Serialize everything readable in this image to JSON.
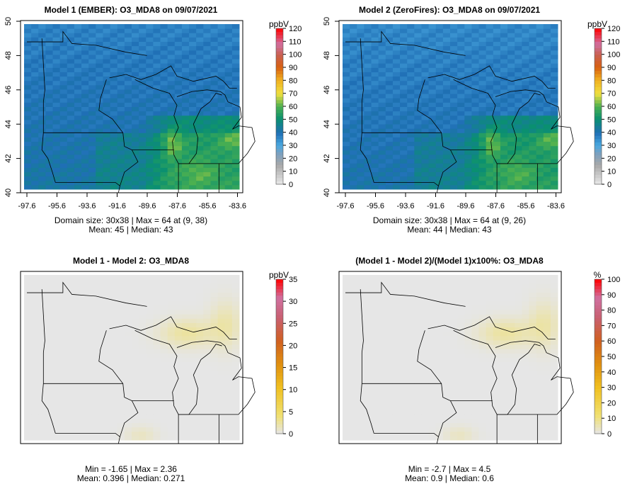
{
  "chart_data": [
    {
      "type": "heatmap",
      "title": "Model 1 (EMBER): O3_MDA8 on 09/07/2021",
      "x_ticks": [
        "-97.6",
        "-95.6",
        "-93.6",
        "-91.6",
        "-89.6",
        "-87.6",
        "-85.6",
        "-83.6"
      ],
      "y_ticks": [
        "40",
        "42",
        "44",
        "46",
        "48",
        "50"
      ],
      "xlim": [
        -97.6,
        -83.6
      ],
      "ylim": [
        40,
        50
      ],
      "colorbar": {
        "unit": "ppbV",
        "ticks": [
          "0",
          "10",
          "20",
          "30",
          "40",
          "50",
          "60",
          "70",
          "80",
          "90",
          "100",
          "110",
          "120"
        ],
        "range": [
          0,
          120
        ]
      },
      "stats": [
        "Domain size: 30x38 | Max = 64 at (9, 38)",
        "Mean: 45 |  Median: 43"
      ],
      "summary": {
        "domain": "30x38",
        "max": 64,
        "max_at": [
          9,
          38
        ],
        "mean": 45,
        "median": 43
      }
    },
    {
      "type": "heatmap",
      "title": "Model 2 (ZeroFires): O3_MDA8 on 09/07/2021",
      "x_ticks": [
        "-97.6",
        "-95.6",
        "-93.6",
        "-91.6",
        "-89.6",
        "-87.6",
        "-85.6",
        "-83.6"
      ],
      "y_ticks": [
        "40",
        "42",
        "44",
        "46",
        "48",
        "50"
      ],
      "xlim": [
        -97.6,
        -83.6
      ],
      "ylim": [
        40,
        50
      ],
      "colorbar": {
        "unit": "ppbV",
        "ticks": [
          "0",
          "10",
          "20",
          "30",
          "40",
          "50",
          "60",
          "70",
          "80",
          "90",
          "100",
          "110",
          "120"
        ],
        "range": [
          0,
          120
        ]
      },
      "stats": [
        "Domain size: 30x38 | Max = 64 at (9, 26)",
        "Mean: 44 |  Median: 43"
      ],
      "summary": {
        "domain": "30x38",
        "max": 64,
        "max_at": [
          9,
          26
        ],
        "mean": 44,
        "median": 43
      }
    },
    {
      "type": "heatmap",
      "title": "Model 1 - Model 2: O3_MDA8",
      "colorbar": {
        "unit": "ppbV",
        "ticks": [
          "0",
          "5",
          "10",
          "15",
          "20",
          "25",
          "30",
          "35"
        ],
        "range": [
          0,
          35
        ]
      },
      "stats": [
        "Min = -1.65 | Max = 2.36",
        "Mean: 0.396 |  Median: 0.271"
      ],
      "summary": {
        "min": -1.65,
        "max": 2.36,
        "mean": 0.396,
        "median": 0.271
      }
    },
    {
      "type": "heatmap",
      "title": "(Model 1 - Model 2)/(Model 1)x100%: O3_MDA8",
      "colorbar": {
        "unit": "%",
        "ticks": [
          "0",
          "10",
          "20",
          "30",
          "40",
          "50",
          "60",
          "70",
          "80",
          "90",
          "100"
        ],
        "range": [
          0,
          100
        ]
      },
      "stats": [
        "Min = -2.7 | Max = 4.5",
        "Mean: 0.9 |  Median: 0.6"
      ],
      "summary": {
        "min": -2.7,
        "max": 4.5,
        "mean": 0.9,
        "median": 0.6
      }
    }
  ]
}
